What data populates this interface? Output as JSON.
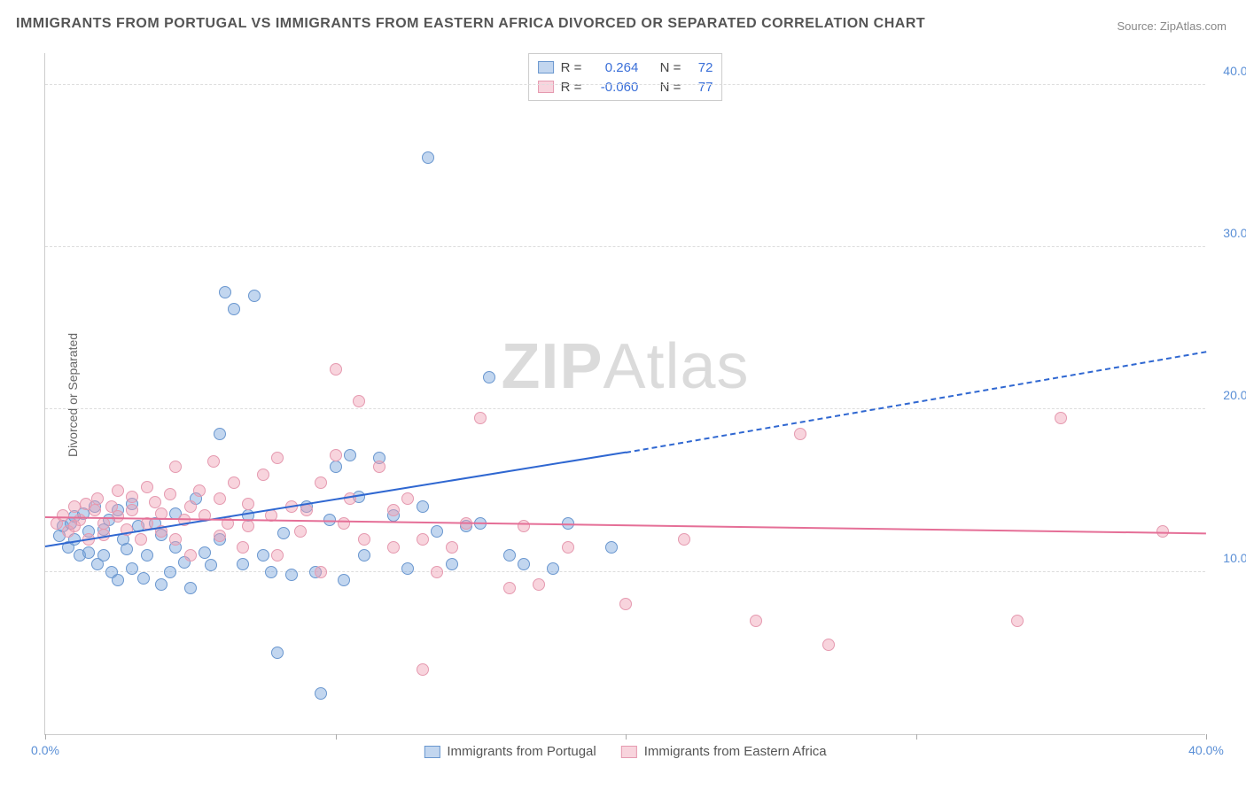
{
  "title": "IMMIGRANTS FROM PORTUGAL VS IMMIGRANTS FROM EASTERN AFRICA DIVORCED OR SEPARATED CORRELATION CHART",
  "source": "Source: ZipAtlas.com",
  "watermark_bold": "ZIP",
  "watermark_light": "Atlas",
  "ylabel": "Divorced or Separated",
  "chart": {
    "type": "scatter",
    "xlim": [
      0,
      40
    ],
    "ylim": [
      0,
      42
    ],
    "x_ticks": [
      0,
      10,
      20,
      30,
      40
    ],
    "x_tick_labels": [
      "0.0%",
      "",
      "",
      "",
      "40.0%"
    ],
    "y_ticks": [
      10,
      20,
      30,
      40
    ],
    "y_tick_labels": [
      "10.0%",
      "20.0%",
      "30.0%",
      "40.0%"
    ],
    "grid_color": "#dddddd",
    "background": "#ffffff",
    "series": [
      {
        "name": "Immigrants from Portugal",
        "fill": "rgba(120,165,220,0.45)",
        "stroke": "#6a97cf",
        "trend_color": "#2f67d1",
        "r_label": "R =",
        "r_value": "0.264",
        "n_label": "N =",
        "n_value": "72",
        "trend": {
          "x1": 0,
          "y1": 11.5,
          "x2_solid": 20,
          "y2_solid": 17.3,
          "x2": 40,
          "y2": 23.5
        },
        "points": [
          [
            0.5,
            12.2
          ],
          [
            0.6,
            12.8
          ],
          [
            0.8,
            11.5
          ],
          [
            0.9,
            13.0
          ],
          [
            1.0,
            12.0
          ],
          [
            1.0,
            13.4
          ],
          [
            1.2,
            11.0
          ],
          [
            1.3,
            13.6
          ],
          [
            1.5,
            12.5
          ],
          [
            1.5,
            11.2
          ],
          [
            1.7,
            14.0
          ],
          [
            1.8,
            10.5
          ],
          [
            2.0,
            12.6
          ],
          [
            2.0,
            11.0
          ],
          [
            2.2,
            13.2
          ],
          [
            2.3,
            10.0
          ],
          [
            2.5,
            13.8
          ],
          [
            2.5,
            9.5
          ],
          [
            2.7,
            12.0
          ],
          [
            2.8,
            11.4
          ],
          [
            3.0,
            14.2
          ],
          [
            3.0,
            10.2
          ],
          [
            3.2,
            12.8
          ],
          [
            3.4,
            9.6
          ],
          [
            3.5,
            11.0
          ],
          [
            3.8,
            13.0
          ],
          [
            4.0,
            12.3
          ],
          [
            4.0,
            9.2
          ],
          [
            4.3,
            10.0
          ],
          [
            4.5,
            11.5
          ],
          [
            4.5,
            13.6
          ],
          [
            4.8,
            10.6
          ],
          [
            5.0,
            9.0
          ],
          [
            5.2,
            14.5
          ],
          [
            5.5,
            11.2
          ],
          [
            5.7,
            10.4
          ],
          [
            6.0,
            12.0
          ],
          [
            6.0,
            18.5
          ],
          [
            6.2,
            27.2
          ],
          [
            6.5,
            26.2
          ],
          [
            6.8,
            10.5
          ],
          [
            7.0,
            13.5
          ],
          [
            7.2,
            27.0
          ],
          [
            7.5,
            11.0
          ],
          [
            7.8,
            10.0
          ],
          [
            8.0,
            5.0
          ],
          [
            8.2,
            12.4
          ],
          [
            8.5,
            9.8
          ],
          [
            9.0,
            14.0
          ],
          [
            9.3,
            10.0
          ],
          [
            9.5,
            2.5
          ],
          [
            9.8,
            13.2
          ],
          [
            10.0,
            16.5
          ],
          [
            10.3,
            9.5
          ],
          [
            10.5,
            17.2
          ],
          [
            10.8,
            14.6
          ],
          [
            11.0,
            11.0
          ],
          [
            11.5,
            17.0
          ],
          [
            12.0,
            13.5
          ],
          [
            12.5,
            10.2
          ],
          [
            13.0,
            14.0
          ],
          [
            13.2,
            35.5
          ],
          [
            13.5,
            12.5
          ],
          [
            14.0,
            10.5
          ],
          [
            14.5,
            12.8
          ],
          [
            15.0,
            13.0
          ],
          [
            15.3,
            22.0
          ],
          [
            16.0,
            11.0
          ],
          [
            16.5,
            10.5
          ],
          [
            17.5,
            10.2
          ],
          [
            18.0,
            13.0
          ],
          [
            19.5,
            11.5
          ]
        ]
      },
      {
        "name": "Immigrants from Eastern Africa",
        "fill": "rgba(240,160,180,0.45)",
        "stroke": "#e59ab0",
        "trend_color": "#e56f97",
        "r_label": "R =",
        "r_value": "-0.060",
        "n_label": "N =",
        "n_value": "77",
        "trend": {
          "x1": 0,
          "y1": 13.3,
          "x2_solid": 40,
          "y2_solid": 12.3,
          "x2": 40,
          "y2": 12.3
        },
        "points": [
          [
            0.4,
            13.0
          ],
          [
            0.6,
            13.5
          ],
          [
            0.8,
            12.5
          ],
          [
            1.0,
            14.0
          ],
          [
            1.0,
            12.8
          ],
          [
            1.2,
            13.2
          ],
          [
            1.4,
            14.2
          ],
          [
            1.5,
            12.0
          ],
          [
            1.7,
            13.8
          ],
          [
            1.8,
            14.5
          ],
          [
            2.0,
            13.0
          ],
          [
            2.0,
            12.3
          ],
          [
            2.3,
            14.0
          ],
          [
            2.5,
            13.4
          ],
          [
            2.5,
            15.0
          ],
          [
            2.8,
            12.6
          ],
          [
            3.0,
            13.8
          ],
          [
            3.0,
            14.6
          ],
          [
            3.3,
            12.0
          ],
          [
            3.5,
            13.0
          ],
          [
            3.5,
            15.2
          ],
          [
            3.8,
            14.3
          ],
          [
            4.0,
            12.5
          ],
          [
            4.0,
            13.6
          ],
          [
            4.3,
            14.8
          ],
          [
            4.5,
            12.0
          ],
          [
            4.5,
            16.5
          ],
          [
            4.8,
            13.2
          ],
          [
            5.0,
            14.0
          ],
          [
            5.0,
            11.0
          ],
          [
            5.3,
            15.0
          ],
          [
            5.5,
            13.5
          ],
          [
            5.8,
            16.8
          ],
          [
            6.0,
            12.2
          ],
          [
            6.0,
            14.5
          ],
          [
            6.3,
            13.0
          ],
          [
            6.5,
            15.5
          ],
          [
            6.8,
            11.5
          ],
          [
            7.0,
            12.8
          ],
          [
            7.0,
            14.2
          ],
          [
            7.5,
            16.0
          ],
          [
            7.8,
            13.5
          ],
          [
            8.0,
            11.0
          ],
          [
            8.0,
            17.0
          ],
          [
            8.5,
            14.0
          ],
          [
            8.8,
            12.5
          ],
          [
            9.0,
            13.8
          ],
          [
            9.5,
            15.5
          ],
          [
            9.5,
            10.0
          ],
          [
            10.0,
            17.2
          ],
          [
            10.0,
            22.5
          ],
          [
            10.3,
            13.0
          ],
          [
            10.5,
            14.5
          ],
          [
            10.8,
            20.5
          ],
          [
            11.0,
            12.0
          ],
          [
            11.5,
            16.5
          ],
          [
            12.0,
            11.5
          ],
          [
            12.0,
            13.8
          ],
          [
            12.5,
            14.5
          ],
          [
            13.0,
            12.0
          ],
          [
            13.0,
            4.0
          ],
          [
            13.5,
            10.0
          ],
          [
            14.0,
            11.5
          ],
          [
            14.5,
            13.0
          ],
          [
            15.0,
            19.5
          ],
          [
            16.0,
            9.0
          ],
          [
            16.5,
            12.8
          ],
          [
            17.0,
            9.2
          ],
          [
            18.0,
            11.5
          ],
          [
            20.0,
            8.0
          ],
          [
            22.0,
            12.0
          ],
          [
            24.5,
            7.0
          ],
          [
            26.0,
            18.5
          ],
          [
            27.0,
            5.5
          ],
          [
            33.5,
            7.0
          ],
          [
            35.0,
            19.5
          ],
          [
            38.5,
            12.5
          ]
        ]
      }
    ]
  }
}
